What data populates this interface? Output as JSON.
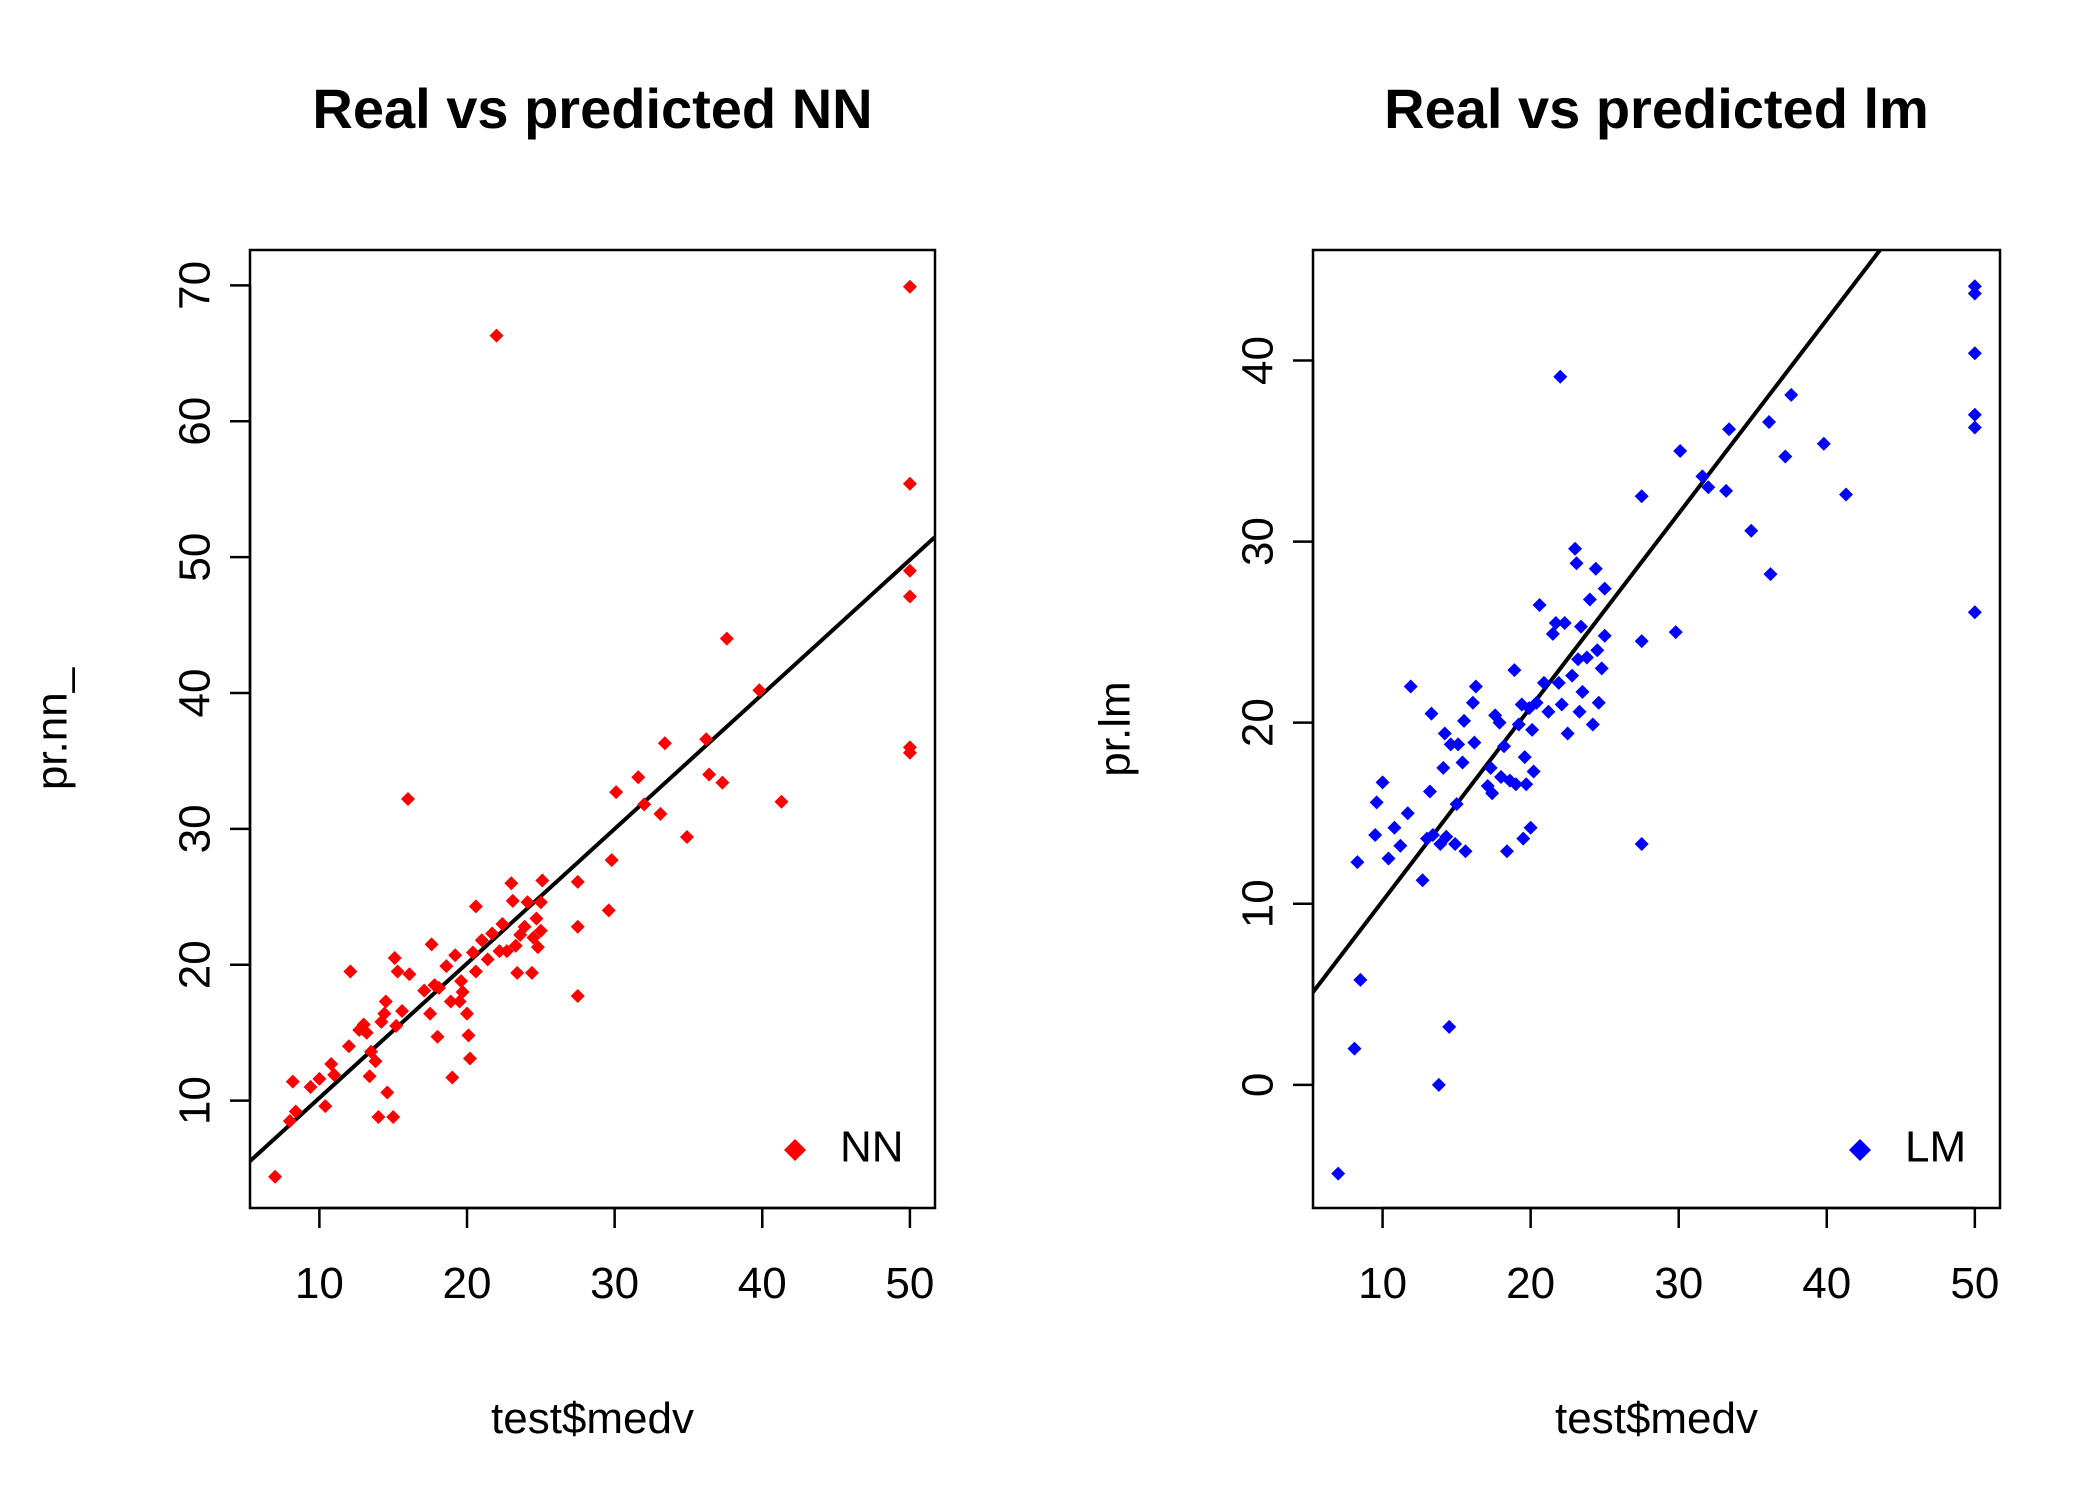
{
  "chart_data": [
    {
      "type": "scatter",
      "title": "Real vs predicted NN",
      "xlabel": "test$medv",
      "ylabel": "pr.nn_",
      "xlim": [
        5.3,
        51.7
      ],
      "ylim": [
        2.1,
        72.6
      ],
      "xticks": [
        10,
        20,
        30,
        40,
        50
      ],
      "yticks": [
        10,
        20,
        30,
        40,
        50,
        60,
        70
      ],
      "point_color": "#ff0000",
      "line_color": "#000000",
      "grid": false,
      "legend": {
        "position": "bottom-right",
        "label": "NN"
      },
      "fit_line": {
        "intercept": 0.3,
        "slope": 0.99
      },
      "series": [
        {
          "name": "NN",
          "points": [
            [
              7.0,
              4.4
            ],
            [
              8.0,
              8.5
            ],
            [
              8.2,
              11.4
            ],
            [
              8.4,
              9.2
            ],
            [
              9.4,
              11.0
            ],
            [
              10.0,
              11.6
            ],
            [
              10.4,
              9.6
            ],
            [
              10.8,
              12.7
            ],
            [
              11.0,
              11.9
            ],
            [
              12.0,
              14.0
            ],
            [
              12.1,
              19.5
            ],
            [
              12.7,
              15.2
            ],
            [
              13.0,
              15.6
            ],
            [
              13.2,
              15.0
            ],
            [
              13.4,
              11.8
            ],
            [
              13.5,
              13.6
            ],
            [
              13.8,
              12.9
            ],
            [
              14.0,
              8.8
            ],
            [
              14.2,
              15.8
            ],
            [
              14.4,
              16.4
            ],
            [
              14.5,
              17.3
            ],
            [
              14.6,
              10.6
            ],
            [
              15.0,
              8.8
            ],
            [
              15.1,
              20.5
            ],
            [
              15.2,
              15.5
            ],
            [
              15.3,
              19.5
            ],
            [
              15.6,
              16.6
            ],
            [
              16.1,
              19.3
            ],
            [
              16.0,
              32.2
            ],
            [
              17.1,
              18.1
            ],
            [
              17.5,
              16.4
            ],
            [
              17.6,
              21.5
            ],
            [
              17.8,
              18.5
            ],
            [
              18.0,
              14.7
            ],
            [
              18.1,
              18.3
            ],
            [
              18.6,
              19.9
            ],
            [
              18.9,
              17.3
            ],
            [
              19.0,
              11.7
            ],
            [
              19.2,
              20.7
            ],
            [
              19.5,
              17.3
            ],
            [
              19.6,
              18.8
            ],
            [
              19.7,
              18.0
            ],
            [
              20.0,
              16.4
            ],
            [
              20.1,
              14.8
            ],
            [
              20.2,
              13.1
            ],
            [
              20.4,
              20.9
            ],
            [
              20.6,
              24.3
            ],
            [
              20.6,
              19.5
            ],
            [
              21.0,
              21.8
            ],
            [
              21.4,
              20.4
            ],
            [
              21.7,
              22.3
            ],
            [
              22.0,
              66.3
            ],
            [
              22.2,
              21.0
            ],
            [
              22.4,
              23.0
            ],
            [
              22.7,
              21.0
            ],
            [
              23.0,
              26.0
            ],
            [
              23.1,
              24.7
            ],
            [
              23.3,
              21.4
            ],
            [
              23.4,
              19.4
            ],
            [
              23.6,
              22.2
            ],
            [
              23.9,
              22.8
            ],
            [
              24.1,
              24.6
            ],
            [
              24.4,
              19.4
            ],
            [
              24.5,
              22.0
            ],
            [
              24.7,
              23.4
            ],
            [
              24.8,
              21.3
            ],
            [
              25.0,
              22.5
            ],
            [
              25.0,
              24.6
            ],
            [
              25.1,
              26.2
            ],
            [
              27.5,
              26.1
            ],
            [
              27.5,
              22.8
            ],
            [
              27.5,
              17.7
            ],
            [
              29.6,
              24.0
            ],
            [
              29.8,
              27.7
            ],
            [
              30.1,
              32.7
            ],
            [
              31.6,
              33.8
            ],
            [
              32.0,
              31.8
            ],
            [
              33.1,
              31.1
            ],
            [
              33.4,
              36.3
            ],
            [
              34.9,
              29.4
            ],
            [
              36.2,
              36.6
            ],
            [
              36.4,
              34.0
            ],
            [
              37.3,
              33.4
            ],
            [
              37.6,
              44.0
            ],
            [
              39.8,
              40.2
            ],
            [
              41.3,
              32.0
            ],
            [
              50.0,
              69.9
            ],
            [
              50.0,
              55.4
            ],
            [
              50.0,
              49.0
            ],
            [
              50.0,
              47.1
            ],
            [
              50.0,
              36.0
            ],
            [
              50.0,
              35.6
            ]
          ]
        }
      ]
    },
    {
      "type": "scatter",
      "title": "Real vs predicted lm",
      "xlabel": "test$medv",
      "ylabel": "pr.lm",
      "xlim": [
        5.3,
        51.7
      ],
      "ylim": [
        -6.8,
        46.1
      ],
      "xticks": [
        10,
        20,
        30,
        40,
        50
      ],
      "yticks": [
        0,
        10,
        20,
        30,
        40
      ],
      "point_color": "#0000ff",
      "line_color": "#000000",
      "grid": false,
      "legend": {
        "position": "bottom-right",
        "label": "LM"
      },
      "fit_line": {
        "intercept": -0.55,
        "slope": 1.07
      },
      "series": [
        {
          "name": "LM",
          "points": [
            [
              7.0,
              -4.9
            ],
            [
              8.1,
              2.0
            ],
            [
              8.3,
              12.3
            ],
            [
              8.5,
              5.8
            ],
            [
              9.5,
              13.8
            ],
            [
              9.6,
              15.6
            ],
            [
              10.0,
              16.7
            ],
            [
              10.8,
              14.2
            ],
            [
              10.4,
              12.5
            ],
            [
              11.2,
              13.2
            ],
            [
              11.7,
              15.0
            ],
            [
              11.9,
              22.0
            ],
            [
              12.7,
              11.3
            ],
            [
              13.0,
              13.6
            ],
            [
              13.2,
              16.2
            ],
            [
              13.3,
              20.5
            ],
            [
              13.4,
              13.8
            ],
            [
              13.8,
              0.0
            ],
            [
              13.9,
              13.3
            ],
            [
              14.1,
              17.5
            ],
            [
              14.2,
              19.4
            ],
            [
              14.3,
              13.7
            ],
            [
              14.5,
              3.2
            ],
            [
              14.6,
              18.8
            ],
            [
              14.9,
              13.3
            ],
            [
              15.0,
              15.5
            ],
            [
              15.1,
              18.8
            ],
            [
              15.4,
              17.8
            ],
            [
              15.5,
              20.1
            ],
            [
              15.6,
              12.9
            ],
            [
              16.1,
              21.1
            ],
            [
              16.2,
              18.9
            ],
            [
              16.3,
              22.0
            ],
            [
              17.1,
              16.5
            ],
            [
              17.3,
              17.5
            ],
            [
              17.4,
              16.1
            ],
            [
              17.6,
              20.4
            ],
            [
              17.9,
              20.0
            ],
            [
              18.0,
              17.0
            ],
            [
              18.2,
              18.7
            ],
            [
              18.4,
              12.9
            ],
            [
              18.6,
              16.8
            ],
            [
              18.9,
              22.9
            ],
            [
              19.0,
              16.6
            ],
            [
              19.2,
              19.9
            ],
            [
              19.4,
              21.0
            ],
            [
              19.5,
              13.6
            ],
            [
              19.6,
              18.1
            ],
            [
              19.7,
              16.6
            ],
            [
              19.9,
              20.8
            ],
            [
              20.0,
              14.2
            ],
            [
              20.1,
              19.6
            ],
            [
              20.2,
              17.3
            ],
            [
              20.4,
              21.1
            ],
            [
              20.6,
              26.5
            ],
            [
              20.9,
              22.2
            ],
            [
              21.2,
              20.6
            ],
            [
              21.5,
              24.9
            ],
            [
              21.7,
              25.5
            ],
            [
              21.9,
              22.2
            ],
            [
              22.0,
              39.1
            ],
            [
              22.1,
              21.0
            ],
            [
              22.3,
              25.5
            ],
            [
              22.5,
              19.4
            ],
            [
              22.8,
              22.6
            ],
            [
              23.0,
              29.6
            ],
            [
              23.1,
              28.8
            ],
            [
              23.2,
              23.5
            ],
            [
              23.3,
              20.6
            ],
            [
              23.4,
              25.3
            ],
            [
              23.5,
              21.7
            ],
            [
              23.8,
              23.6
            ],
            [
              24.0,
              26.8
            ],
            [
              24.2,
              19.9
            ],
            [
              24.4,
              28.5
            ],
            [
              24.5,
              24.0
            ],
            [
              24.6,
              21.1
            ],
            [
              24.8,
              23.0
            ],
            [
              25.0,
              24.8
            ],
            [
              25.0,
              27.4
            ],
            [
              27.5,
              32.5
            ],
            [
              27.5,
              24.5
            ],
            [
              27.5,
              13.3
            ],
            [
              29.8,
              25.0
            ],
            [
              30.1,
              35.0
            ],
            [
              31.6,
              33.6
            ],
            [
              32.0,
              33.0
            ],
            [
              33.2,
              32.8
            ],
            [
              33.4,
              36.2
            ],
            [
              34.9,
              30.6
            ],
            [
              36.1,
              36.6
            ],
            [
              36.2,
              28.2
            ],
            [
              37.2,
              34.7
            ],
            [
              37.6,
              38.1
            ],
            [
              39.8,
              35.4
            ],
            [
              41.3,
              32.6
            ],
            [
              50.0,
              44.1
            ],
            [
              50.0,
              43.7
            ],
            [
              50.0,
              40.4
            ],
            [
              50.0,
              37.0
            ],
            [
              50.0,
              36.3
            ],
            [
              50.0,
              26.1
            ]
          ]
        }
      ]
    }
  ]
}
